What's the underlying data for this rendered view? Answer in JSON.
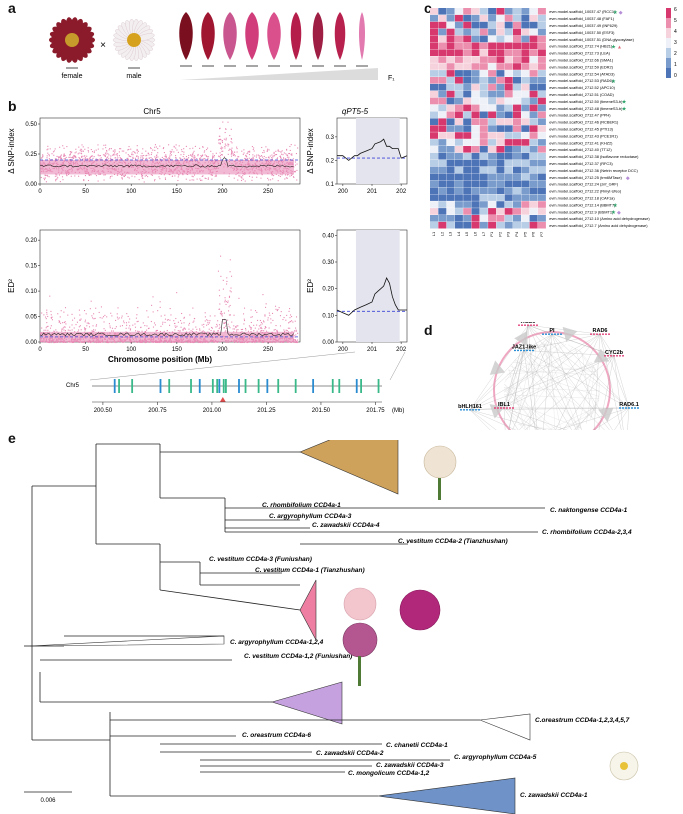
{
  "panel_labels": {
    "a": "a",
    "b": "b",
    "c": "c",
    "d": "d",
    "e": "e"
  },
  "panel_a": {
    "female_label": "female",
    "male_label": "male",
    "cross_symbol": "×",
    "f1_label": "F₁",
    "flower_colors": {
      "female": "#8b1a2b",
      "male_petals": "#f3eef0",
      "male_center": "#d6a21e"
    },
    "petal_colors": [
      "#7a0f1f",
      "#a01530",
      "#c9568e",
      "#d03d7a",
      "#d9508c",
      "#b51e4a",
      "#9e1e44",
      "#b8204e",
      "#e27ab0"
    ]
  },
  "panel_b": {
    "chr_title": "Chr5",
    "region_title": "qPT5-5",
    "xaxis_title": "Chromosome position (Mb)",
    "top_ylabel": "Δ SNP-index",
    "bottom_ylabel": "ED²",
    "chr_label": "Chr5",
    "mb_label": "(Mb)",
    "chart_data": [
      {
        "type": "scatter",
        "title": "Chr5",
        "ylabel": "Δ SNP-index",
        "xlim": [
          0,
          285
        ],
        "ylim": [
          0,
          0.55
        ],
        "x_ticks": [
          "0",
          "50",
          "100",
          "150",
          "200",
          "250"
        ],
        "y_ticks": [
          "0.00",
          "0.25",
          "0.50"
        ],
        "threshold": 0.2,
        "smooth_baseline": 0.15,
        "peak_region": [
          195,
          210
        ]
      },
      {
        "type": "line",
        "title": "qPT5-5",
        "ylabel": "Δ SNP-index",
        "xlim": [
          199.8,
          202.2
        ],
        "ylim": [
          0.1,
          0.38
        ],
        "x_ticks": [
          "200",
          "201",
          "202"
        ],
        "y_ticks": [
          "0.1",
          "0.2",
          "0.3"
        ],
        "threshold": 0.21,
        "highlight": [
          200.45,
          201.95
        ],
        "x": [
          199.8,
          200.0,
          200.2,
          200.4,
          200.5,
          200.6,
          200.8,
          201.0,
          201.1,
          201.3,
          201.4,
          201.5,
          201.6,
          201.7,
          201.9,
          202.0,
          202.2
        ],
        "y": [
          0.22,
          0.22,
          0.2,
          0.22,
          0.22,
          0.23,
          0.24,
          0.25,
          0.27,
          0.28,
          0.29,
          0.26,
          0.26,
          0.25,
          0.25,
          0.21,
          0.22
        ]
      },
      {
        "type": "scatter",
        "title": "",
        "ylabel": "ED²",
        "xlim": [
          0,
          285
        ],
        "ylim": [
          0,
          0.22
        ],
        "x_ticks": [
          "0",
          "50",
          "100",
          "150",
          "200",
          "250"
        ],
        "y_ticks": [
          "0.00",
          "0.05",
          "0.10",
          "0.15",
          "0.20"
        ],
        "threshold": 0.01,
        "peak_region": [
          195,
          210
        ]
      },
      {
        "type": "line",
        "title": "",
        "ylabel": "ED²",
        "xlim": [
          199.8,
          202.2
        ],
        "ylim": [
          0,
          0.42
        ],
        "x_ticks": [
          "200",
          "201",
          "202"
        ],
        "y_ticks": [
          "0.00",
          "0.10",
          "0.20",
          "0.30",
          "0.40"
        ],
        "threshold": 0.115,
        "highlight": [
          200.45,
          201.95
        ],
        "x": [
          199.8,
          200.0,
          200.2,
          200.4,
          200.6,
          200.8,
          201.0,
          201.1,
          201.2,
          201.3,
          201.4,
          201.5,
          201.6,
          201.7,
          201.8,
          201.9,
          202.0,
          202.2
        ],
        "y": [
          0.12,
          0.11,
          0.1,
          0.12,
          0.13,
          0.14,
          0.15,
          0.18,
          0.19,
          0.2,
          0.21,
          0.24,
          0.22,
          0.17,
          0.14,
          0.12,
          0.12,
          0.12
        ]
      }
    ],
    "gene_axis": {
      "ticks": [
        "200.50",
        "200.75",
        "201.00",
        "201.25",
        "201.50",
        "201.75"
      ],
      "genes": [
        200.55,
        200.57,
        200.63,
        200.76,
        200.8,
        200.9,
        200.94,
        201.0,
        201.02,
        201.03,
        201.05,
        201.06,
        201.12,
        201.15,
        201.21,
        201.25,
        201.3,
        201.38,
        201.46,
        201.55,
        201.58,
        201.66,
        201.68,
        201.76
      ]
    }
  },
  "panel_c": {
    "legend_ticks": [
      "6",
      "5",
      "4",
      "3",
      "2",
      "1",
      "0"
    ],
    "genes": [
      {
        "id": "evm.model.scaffold_10037.47 (RCC1)",
        "mark": "star-diamond"
      },
      {
        "id": "evm.model.scaffold_10037.48 (FAF1)",
        "mark": ""
      },
      {
        "id": "evm.model.scaffold_10037.49 (INF629)",
        "mark": ""
      },
      {
        "id": "evm.model.scaffold_10037.50 (ESF3)",
        "mark": ""
      },
      {
        "id": "evm.model.scaffold_10037.51 (DNA glycosylase)",
        "mark": ""
      },
      {
        "id": "evm.model.scaffold_2712.74 (HB21)",
        "mark": "star-triangle"
      },
      {
        "id": "evm.model.scaffold_2712.73 (LEA)",
        "mark": ""
      },
      {
        "id": "evm.model.scaffold_2712.66 (SMA1)",
        "mark": ""
      },
      {
        "id": "evm.model.scaffold_2712.59 (EDR2)",
        "mark": ""
      },
      {
        "id": "evm.model.scaffold_2712.54 (ATAD3)",
        "mark": ""
      },
      {
        "id": "evm.model.scaffold_2712.53 (RAD6)",
        "mark": "star"
      },
      {
        "id": "evm.model.scaffold_2712.52 (APC10)",
        "mark": ""
      },
      {
        "id": "evm.model.scaffold_2712.51 (COAD)",
        "mark": ""
      },
      {
        "id": "evm.model.scaffold_2712.50 (timeneS3-b)",
        "mark": "star"
      },
      {
        "id": "evm.model.scaffold_2712.48 (timeneS3-b)",
        "mark": "star"
      },
      {
        "id": "evm.model.scaffold_2712.47 (PPH)",
        "mark": ""
      },
      {
        "id": "evm.model.scaffold_2712.46 (RCBER1)",
        "mark": ""
      },
      {
        "id": "evm.model.scaffold_2712.45 (PTI13)",
        "mark": ""
      },
      {
        "id": "evm.model.scaffold_2712.43 (PCE1R1)",
        "mark": ""
      },
      {
        "id": "evm.model.scaffold_2712.41 (KHZ2)",
        "mark": ""
      },
      {
        "id": "evm.model.scaffold_2712.40 (TT12)",
        "mark": ""
      },
      {
        "id": "evm.model.scaffold_2712.38 (Isoflavone reductase)",
        "mark": ""
      },
      {
        "id": "evm.model.scaffold_2712.37 (RFC3)",
        "mark": ""
      },
      {
        "id": "evm.model.scaffold_2712.36 (Netrin receptor DCC)",
        "mark": ""
      },
      {
        "id": "evm.model.scaffold_2712.25 (trm6MTase)",
        "mark": "diamond"
      },
      {
        "id": "evm.model.scaffold_2712.24 (znf_GRF)",
        "mark": ""
      },
      {
        "id": "evm.model.scaffold_2712.22 (Rmyt-Ufeo)",
        "mark": ""
      },
      {
        "id": "evm.model.scaffold_2712.18 (CAF1a)",
        "mark": ""
      },
      {
        "id": "evm.model.scaffold_2712.14 (BBMT7)",
        "mark": "star"
      },
      {
        "id": "evm.model.scaffold_2712.9 (BSMT1)",
        "mark": "star-diamond"
      },
      {
        "id": "evm.model.scaffold_2712.10 (Amino acid dehydrogenase)",
        "mark": ""
      },
      {
        "id": "evm.model.scaffold_2712.7 (Amino acid dehydrogenase)",
        "mark": ""
      }
    ],
    "columns": [
      "L1",
      "L2",
      "L3",
      "L4",
      "L5",
      "L6",
      "L7",
      "P1",
      "P2",
      "P3",
      "P4",
      "P5",
      "P6",
      "P7"
    ]
  },
  "panel_d": {
    "nodes": [
      "AGL6",
      "PI",
      "RAD6",
      "JAZ1-like",
      "CYC2b",
      "bHLH161",
      "IBL1",
      "RAD6.1",
      "CYC2a",
      "CYC2c",
      "BZS1",
      "TPL1.1"
    ]
  },
  "panel_e": {
    "scale_label": "0.006",
    "taxa": [
      {
        "label": "C. rhombifolium CCD4a-1"
      },
      {
        "label": "C. naktongense CCD4a-1"
      },
      {
        "label": "C. argyrophyllum CCD4a-3"
      },
      {
        "label": "C. zawadskii CCD4a-4"
      },
      {
        "label": "C. rhombifolium CCD4a-2,3,4"
      },
      {
        "label": "C. vestitum CCD4a-2 (Tianzhushan)"
      },
      {
        "label": "C. vestitum CCD4a-3 (Funiushan)"
      },
      {
        "label": "C. vestitum CCD4a-1 (Tianzhushan)"
      },
      {
        "label": "C. argyrophyllum CCD4a-1,2,4"
      },
      {
        "label": "C. vestitum CCD4a-1,2 (Funiushan)"
      },
      {
        "label": "C.oreastrum CCD4a-1,2,3,4,5,7"
      },
      {
        "label": "C. oreastrum CCD4a-6"
      },
      {
        "label": "C. chanetii CCD4a-1"
      },
      {
        "label": "C. zawadskii CCD4a-2"
      },
      {
        "label": "C. argyrophyllum CCD4a-5"
      },
      {
        "label": "C. zawadskii CCD4a-3"
      },
      {
        "label": "C. mongolicum CCD4a-1,2"
      },
      {
        "label": "C. zawadskii CCD4a-1"
      }
    ],
    "clade_colors": {
      "tan": "#cfa25b",
      "pink": "#ee7fa3",
      "lilac": "#c6a1df",
      "blue": "#6f93c8"
    }
  }
}
